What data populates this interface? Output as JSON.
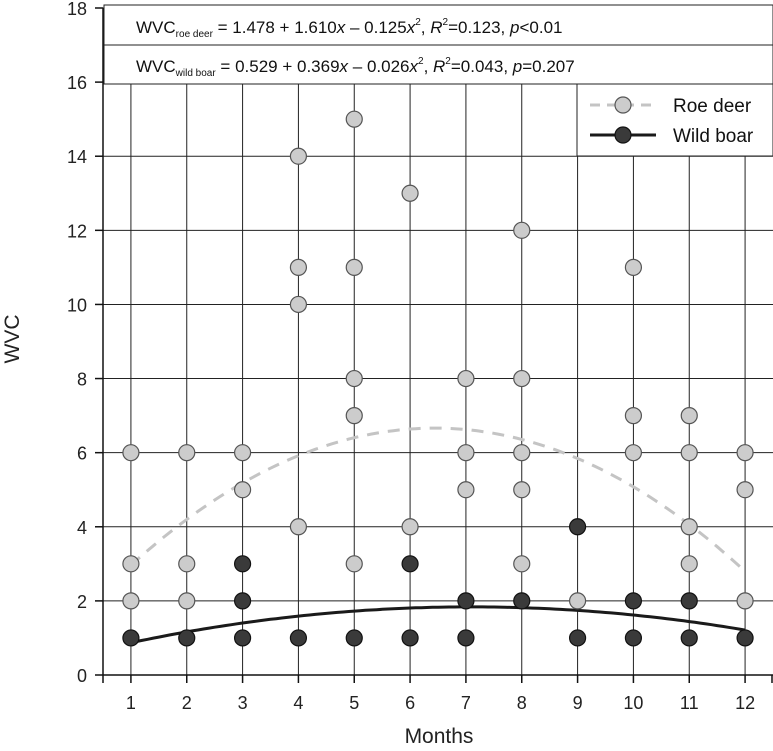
{
  "chart_data": {
    "type": "scatter",
    "xlabel": "Months",
    "ylabel": "WVC",
    "xlim": [
      0.5,
      12.5
    ],
    "ylim": [
      0,
      18
    ],
    "x_ticks": [
      1,
      2,
      3,
      4,
      5,
      6,
      7,
      8,
      9,
      10,
      11,
      12
    ],
    "y_ticks": [
      0,
      2,
      4,
      6,
      8,
      10,
      12,
      14,
      16,
      18
    ],
    "grid": true,
    "legend_position": "top-right",
    "equations": [
      {
        "prefix": "WVC",
        "subscript": "roe deer",
        "body": " = 1.478 + 1.610",
        "x": "x",
        "mid": " – 0.125",
        "x2": "x",
        "sup": "2",
        "comma": ",  ",
        "r": "R",
        "r_sup": "2",
        "r_val": "=0.123,  ",
        "p": "p",
        "p_val": "<0.01"
      },
      {
        "prefix": "WVC",
        "subscript": "wild boar",
        "body": " = 0.529 + 0.369",
        "x": "x",
        "mid": " – 0.026",
        "x2": "x",
        "sup": "2",
        "comma": ",  ",
        "r": "R",
        "r_sup": "2",
        "r_val": "=0.043,  ",
        "p": "p",
        "p_val": "=0.207"
      }
    ],
    "series": [
      {
        "name": "Roe deer",
        "color": "#cccccc",
        "line_color": "#c4c4c4",
        "line_style": "dashed",
        "fit": [
          1.478,
          1.61,
          -0.125
        ],
        "points": [
          [
            1,
            2
          ],
          [
            1,
            3
          ],
          [
            1,
            6
          ],
          [
            2,
            2
          ],
          [
            2,
            3
          ],
          [
            2,
            6
          ],
          [
            3,
            5
          ],
          [
            3,
            6
          ],
          [
            4,
            4
          ],
          [
            4,
            10
          ],
          [
            4,
            11
          ],
          [
            4,
            14
          ],
          [
            5,
            3
          ],
          [
            5,
            7
          ],
          [
            5,
            8
          ],
          [
            5,
            11
          ],
          [
            5,
            15
          ],
          [
            6,
            4
          ],
          [
            6,
            13
          ],
          [
            7,
            5
          ],
          [
            7,
            6
          ],
          [
            7,
            8
          ],
          [
            8,
            3
          ],
          [
            8,
            5
          ],
          [
            8,
            6
          ],
          [
            8,
            8
          ],
          [
            8,
            12
          ],
          [
            9,
            2
          ],
          [
            10,
            6
          ],
          [
            10,
            7
          ],
          [
            10,
            11
          ],
          [
            11,
            3
          ],
          [
            11,
            4
          ],
          [
            11,
            6
          ],
          [
            11,
            7
          ],
          [
            12,
            2
          ],
          [
            12,
            5
          ],
          [
            12,
            6
          ]
        ]
      },
      {
        "name": "Wild boar",
        "color": "#3a3a3a",
        "line_color": "#1a1a1a",
        "line_style": "solid",
        "fit": [
          0.529,
          0.369,
          -0.026
        ],
        "points": [
          [
            1,
            1
          ],
          [
            2,
            1
          ],
          [
            3,
            1
          ],
          [
            3,
            2
          ],
          [
            3,
            3
          ],
          [
            4,
            1
          ],
          [
            5,
            1
          ],
          [
            6,
            1
          ],
          [
            6,
            3
          ],
          [
            7,
            1
          ],
          [
            7,
            2
          ],
          [
            8,
            2
          ],
          [
            9,
            1
          ],
          [
            9,
            4
          ],
          [
            10,
            1
          ],
          [
            10,
            2
          ],
          [
            11,
            1
          ],
          [
            11,
            2
          ],
          [
            12,
            1
          ]
        ]
      }
    ]
  }
}
